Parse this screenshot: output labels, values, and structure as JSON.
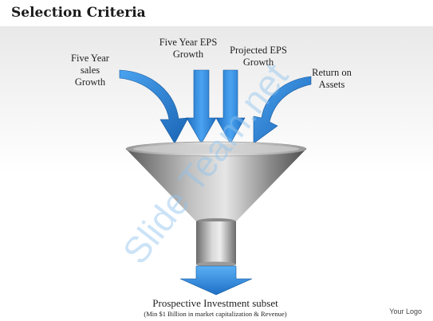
{
  "title": "Selection Criteria",
  "inputs": {
    "sales": "Five Year\nsales\nGrowth",
    "eps": "Five Year EPS\nGrowth",
    "projected": "Projected EPS\nGrowth",
    "roa": "Return on\nAssets"
  },
  "output": {
    "label": "Prospective Investment subset",
    "note": "(Min $1 Billion in market capitalization & Revenue)"
  },
  "watermark": "Slide Team.net",
  "logo": "Your Logo",
  "colors": {
    "arrow": "#2b86d9",
    "arrow_dark": "#15579c",
    "funnel": "#7d7d7d"
  }
}
